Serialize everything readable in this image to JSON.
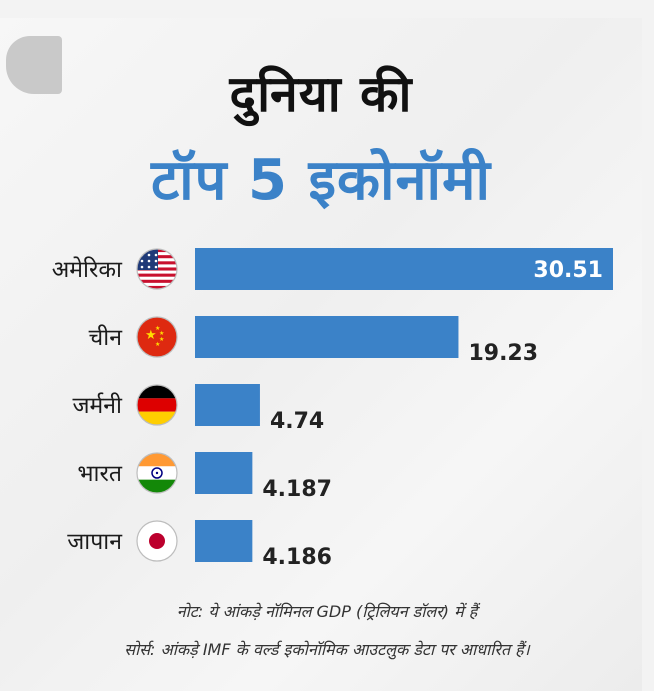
{
  "header": {
    "title_line1": "दुनिया की",
    "title_line2": "टॉप 5 इकोनॉमी"
  },
  "chart_data": {
    "type": "bar",
    "orientation": "horizontal",
    "categories": [
      "अमेरिका",
      "चीन",
      "जर्मनी",
      "भारत",
      "जापान"
    ],
    "values": [
      30.51,
      19.23,
      4.74,
      4.187,
      4.186
    ],
    "value_labels": [
      "30.51",
      "19.23",
      "4.74",
      "4.187",
      "4.186"
    ],
    "flags": [
      "usa-flag-icon",
      "china-flag-icon",
      "germany-flag-icon",
      "india-flag-icon",
      "japan-flag-icon"
    ],
    "bar_color": "#3b82c8",
    "title": "दुनिया की टॉप 5 इकोनॉमी",
    "xlim": [
      0,
      30.51
    ]
  },
  "footer": {
    "note": "नोट: ये आंकड़े नॉमिनल GDP (ट्रिलियन डॉलर) में हैं",
    "source": "सोर्स: आंकड़े IMF के वर्ल्ड इकोनॉमिक आउटलुक डेटा पर आधारित हैं।"
  }
}
